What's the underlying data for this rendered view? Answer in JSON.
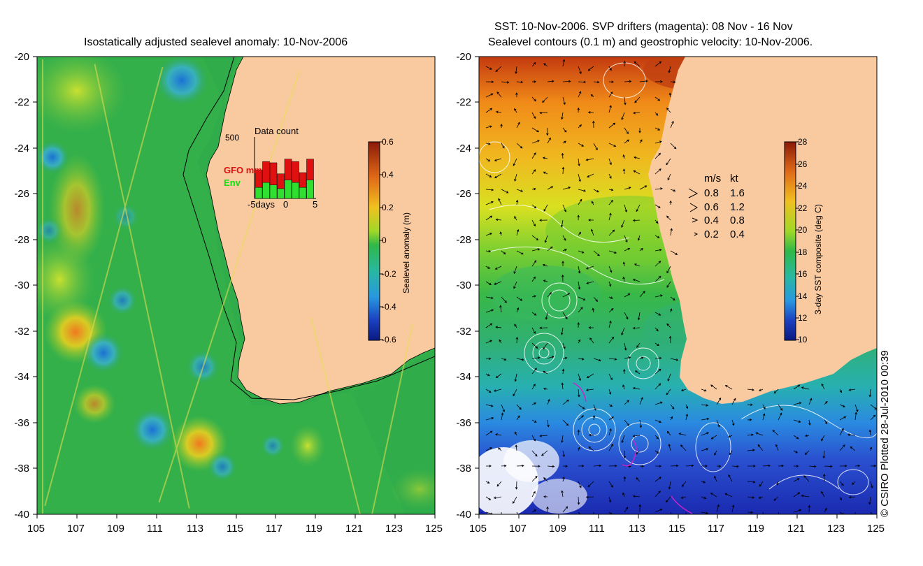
{
  "left_panel": {
    "title": "Isostatically adjusted sealevel anomaly: 10-Nov-2006",
    "x_ticks": [
      "105",
      "107",
      "109",
      "111",
      "113",
      "115",
      "117",
      "119",
      "121",
      "123",
      "125"
    ],
    "y_ticks": [
      "-20",
      "-22",
      "-24",
      "-26",
      "-28",
      "-30",
      "-32",
      "-34",
      "-36",
      "-38",
      "-40"
    ],
    "colorbar": {
      "label": "Sealevel anomaly (m)",
      "ticks": [
        "0.6",
        "0.4",
        "0.2",
        "0",
        "-0.2",
        "-0.4",
        "-0.6"
      ],
      "min": -0.6,
      "max": 0.6
    },
    "inset": {
      "title": "Data count",
      "y_max_label": "500",
      "series_gfo": "GFO mm",
      "series_env": "Env",
      "x_label_left": "-5days",
      "x_label_mid": "0",
      "x_label_right": "5",
      "gfo_counts": [
        230,
        300,
        290,
        200,
        320,
        300,
        210,
        320
      ],
      "env_counts": [
        90,
        130,
        110,
        80,
        150,
        130,
        90,
        150
      ]
    }
  },
  "right_panel": {
    "title_line1": "SST: 10-Nov-2006. SVP drifters (magenta): 08 Nov - 16 Nov",
    "title_line2": "Sealevel contours (0.1 m) and geostrophic velocity: 10-Nov-2006.",
    "x_ticks": [
      "105",
      "107",
      "109",
      "111",
      "113",
      "115",
      "117",
      "119",
      "121",
      "123",
      "125"
    ],
    "y_ticks": [
      "-20",
      "-22",
      "-24",
      "-26",
      "-28",
      "-30",
      "-32",
      "-34",
      "-36",
      "-38",
      "-40"
    ],
    "colorbar": {
      "label": "3-day SST composite (deg C)",
      "ticks": [
        "28",
        "26",
        "24",
        "22",
        "20",
        "18",
        "16",
        "14",
        "12",
        "10"
      ],
      "min": 10,
      "max": 28
    },
    "velocity_legend": {
      "header_ms": "m/s",
      "header_kt": "kt",
      "rows": [
        {
          "ms": "0.8",
          "kt": "1.6",
          "speed": 0.8
        },
        {
          "ms": "0.6",
          "kt": "1.2",
          "speed": 0.6
        },
        {
          "ms": "0.4",
          "kt": "0.8",
          "speed": 0.4
        },
        {
          "ms": "0.2",
          "kt": "0.4",
          "speed": 0.2
        }
      ]
    }
  },
  "credit": "© CSIRO Plotted 28-Jul-2010 00:39",
  "colors": {
    "land": "#f9c9a0",
    "sea_base": "#2aa84a"
  }
}
